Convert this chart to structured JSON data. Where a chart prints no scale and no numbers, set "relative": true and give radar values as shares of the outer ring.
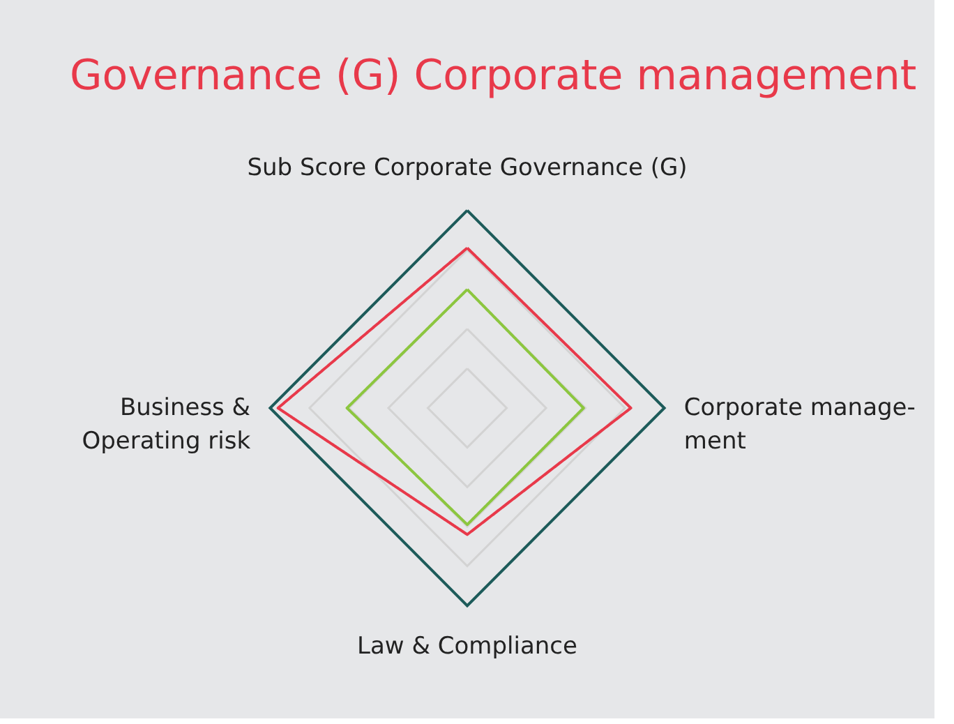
{
  "chart_data": {
    "type": "radar",
    "title": "Governance (G) Corporate management",
    "relative": true,
    "grid": true,
    "legend": false,
    "marker": "none",
    "line_style": "solid",
    "categories": [
      "Sub Score Corporate Governance (G)",
      "Corporate manage-\nment",
      "Law & Compliance",
      "Business &\nOperating risk"
    ],
    "series": [
      {
        "color": "#e8394a",
        "values": [
          0.81,
          0.83,
          0.64,
          0.96
        ]
      },
      {
        "color": "#8cc63f",
        "values": [
          0.6,
          0.59,
          0.59,
          0.61
        ]
      }
    ]
  }
}
